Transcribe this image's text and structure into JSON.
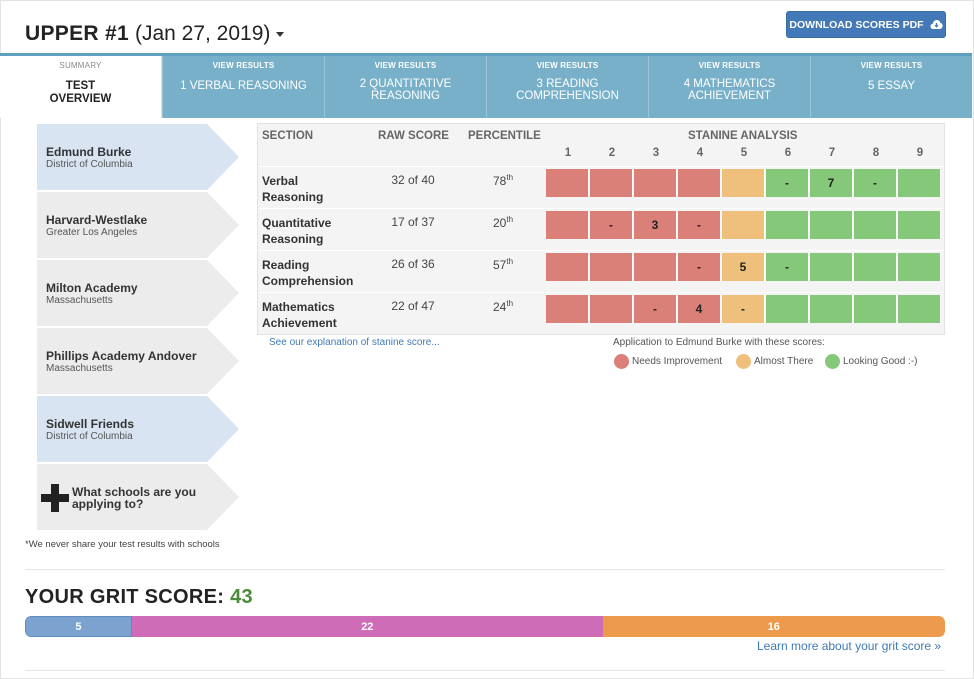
{
  "header": {
    "title": "UPPER #1",
    "date": "(Jan 27, 2019)",
    "download_label": "DOWNLOAD SCORES PDF"
  },
  "tabs": [
    {
      "small": "SUMMARY",
      "line1": "TEST",
      "line2": "OVERVIEW"
    },
    {
      "small": "VIEW RESULTS",
      "line1": "1 VERBAL REASONING",
      "line2": ""
    },
    {
      "small": "VIEW RESULTS",
      "line1": "2 QUANTITATIVE",
      "line2": "REASONING"
    },
    {
      "small": "VIEW RESULTS",
      "line1": "3 READING",
      "line2": "COMPREHENSION"
    },
    {
      "small": "VIEW RESULTS",
      "line1": "4 MATHEMATICS",
      "line2": "ACHIEVEMENT"
    },
    {
      "small": "VIEW RESULTS",
      "line1": "5 ESSAY",
      "line2": ""
    }
  ],
  "schools": [
    {
      "name": "Edmund Burke",
      "location": "District of Columbia",
      "active": true
    },
    {
      "name": "Harvard-Westlake",
      "location": "Greater Los Angeles",
      "active": false
    },
    {
      "name": "Milton Academy",
      "location": "Massachusetts",
      "active": false
    },
    {
      "name": "Phillips Academy Andover",
      "location": "Massachusetts",
      "active": false
    },
    {
      "name": "Sidwell Friends",
      "location": "District of Columbia",
      "active": true
    }
  ],
  "add_school_label": "What schools are you applying to?",
  "privacy_note": "*We never share your test results with schools",
  "table": {
    "headers": {
      "section": "SECTION",
      "raw": "RAW SCORE",
      "percentile": "PERCENTILE",
      "stanine": "STANINE ANALYSIS"
    },
    "stanine_numbers": [
      "1",
      "2",
      "3",
      "4",
      "5",
      "6",
      "7",
      "8",
      "9"
    ],
    "rows": [
      {
        "line1": "Verbal",
        "line2": "Reasoning",
        "raw": "32 of 40",
        "pct": "78",
        "pct_suffix": "th",
        "colors": [
          "red",
          "red",
          "red",
          "red",
          "yellow",
          "green",
          "green",
          "green",
          "green"
        ],
        "marks": [
          "",
          "",
          "",
          "",
          "",
          "-",
          "7",
          "-",
          ""
        ]
      },
      {
        "line1": "Quantitative",
        "line2": "Reasoning",
        "raw": "17 of 37",
        "pct": "20",
        "pct_suffix": "th",
        "colors": [
          "red",
          "red",
          "red",
          "red",
          "yellow",
          "green",
          "green",
          "green",
          "green"
        ],
        "marks": [
          "",
          "-",
          "3",
          "-",
          "",
          "",
          "",
          "",
          ""
        ]
      },
      {
        "line1": "Reading",
        "line2": "Comprehension",
        "raw": "26 of 36",
        "pct": "57",
        "pct_suffix": "th",
        "colors": [
          "red",
          "red",
          "red",
          "red",
          "yellow",
          "green",
          "green",
          "green",
          "green"
        ],
        "marks": [
          "",
          "",
          "",
          "-",
          "5",
          "-",
          "",
          "",
          ""
        ]
      },
      {
        "line1": "Mathematics",
        "line2": "Achievement",
        "raw": "22 of 47",
        "pct": "24",
        "pct_suffix": "th",
        "colors": [
          "red",
          "red",
          "red",
          "red",
          "yellow",
          "green",
          "green",
          "green",
          "green"
        ],
        "marks": [
          "",
          "",
          "-",
          "4",
          "-",
          "",
          "",
          "",
          ""
        ]
      }
    ]
  },
  "stanine_link": "See our explanation of stanine score...",
  "legend": {
    "title": "Application to Edmund Burke with these scores:",
    "items": [
      {
        "label": "Needs Improvement",
        "color": "#db7f79"
      },
      {
        "label": "Almost There",
        "color": "#efc07c"
      },
      {
        "label": "Looking Good :-)",
        "color": "#86c87a"
      }
    ]
  },
  "grit": {
    "title": "YOUR GRIT SCORE:",
    "value": "43",
    "segments": [
      {
        "label": "5",
        "value": 5
      },
      {
        "label": "22",
        "value": 22
      },
      {
        "label": "16",
        "value": 16
      }
    ],
    "link": "Learn more about your grit score »"
  },
  "colors": {
    "red": "#db7f79",
    "yellow": "#efc07c",
    "green": "#86c87a",
    "tab": "#78b0c9",
    "button": "#4279b6"
  }
}
